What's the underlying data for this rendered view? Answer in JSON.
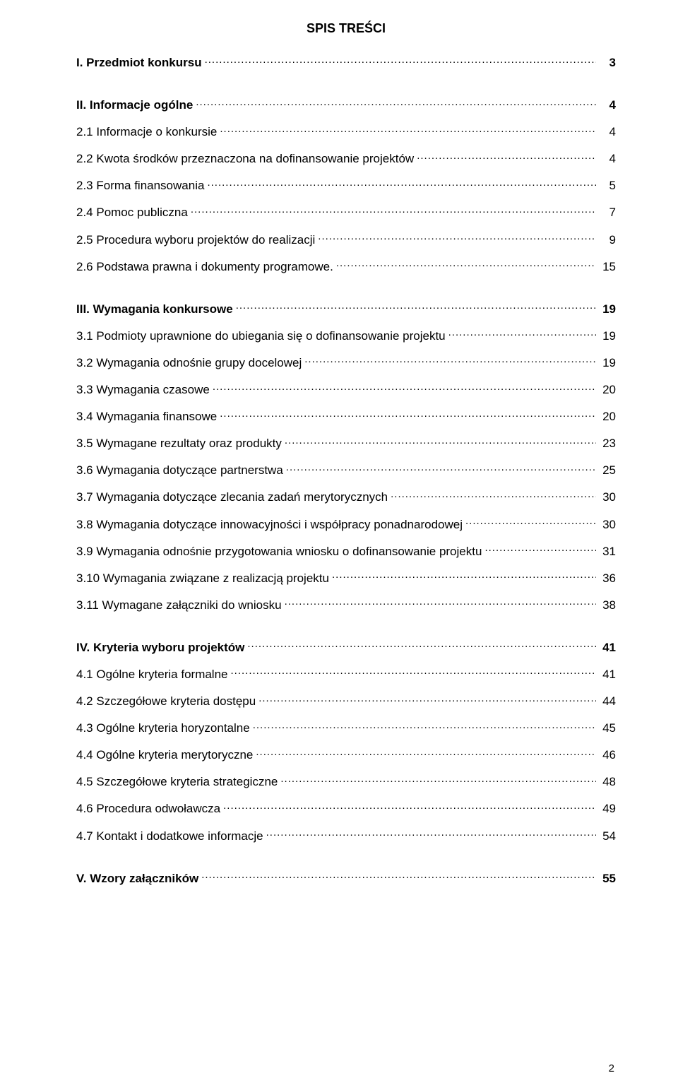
{
  "title": "SPIS TREŚCI",
  "footer_page": "2",
  "entries": [
    {
      "label": "I. Przedmiot konkursu",
      "page": "3",
      "bold": true,
      "gap_after": true
    },
    {
      "label": "II. Informacje ogólne",
      "page": "4",
      "bold": true
    },
    {
      "label": "2.1 Informacje o konkursie",
      "page": "4"
    },
    {
      "label": "2.2 Kwota środków przeznaczona na dofinansowanie projektów",
      "page": "4"
    },
    {
      "label": "2.3 Forma finansowania",
      "page": "5"
    },
    {
      "label": "2.4 Pomoc publiczna",
      "page": "7"
    },
    {
      "label": "2.5 Procedura wyboru projektów do realizacji",
      "page": "9"
    },
    {
      "label": "2.6 Podstawa prawna i dokumenty programowe.",
      "page": "15",
      "gap_after": true
    },
    {
      "label": "III. Wymagania konkursowe",
      "page": "19",
      "bold": true
    },
    {
      "label": "3.1 Podmioty uprawnione do ubiegania się o dofinansowanie projektu",
      "page": "19"
    },
    {
      "label": "3.2 Wymagania odnośnie grupy docelowej",
      "page": "19"
    },
    {
      "label": "3.3 Wymagania czasowe",
      "page": "20"
    },
    {
      "label": "3.4 Wymagania finansowe",
      "page": "20"
    },
    {
      "label": "3.5 Wymagane rezultaty oraz produkty",
      "page": "23"
    },
    {
      "label": "3.6 Wymagania dotyczące partnerstwa",
      "page": "25"
    },
    {
      "label": "3.7 Wymagania dotyczące zlecania zadań merytorycznych",
      "page": "30"
    },
    {
      "label": "3.8 Wymagania dotyczące innowacyjności i współpracy ponadnarodowej",
      "page": "30"
    },
    {
      "label": "3.9 Wymagania odnośnie przygotowania wniosku o dofinansowanie projektu",
      "page": "31"
    },
    {
      "label": "3.10 Wymagania związane z realizacją projektu",
      "page": "36"
    },
    {
      "label": "3.11  Wymagane załączniki do wniosku",
      "page": "38",
      "gap_after": true
    },
    {
      "label": "IV. Kryteria wyboru projektów",
      "page": "41",
      "bold": true
    },
    {
      "label": "4.1 Ogólne kryteria formalne",
      "page": "41"
    },
    {
      "label": "4.2 Szczegółowe kryteria dostępu",
      "page": "44"
    },
    {
      "label": "4.3 Ogólne kryteria horyzontalne",
      "page": "45"
    },
    {
      "label": "4.4 Ogólne kryteria merytoryczne",
      "page": "46"
    },
    {
      "label": "4.5 Szczegółowe kryteria strategiczne",
      "page": "48"
    },
    {
      "label": "4.6 Procedura odwoławcza",
      "page": "49"
    },
    {
      "label": "4.7 Kontakt i dodatkowe informacje",
      "page": "54",
      "gap_after": true
    },
    {
      "label": "V. Wzory załączników",
      "page": "55",
      "bold": true
    }
  ]
}
